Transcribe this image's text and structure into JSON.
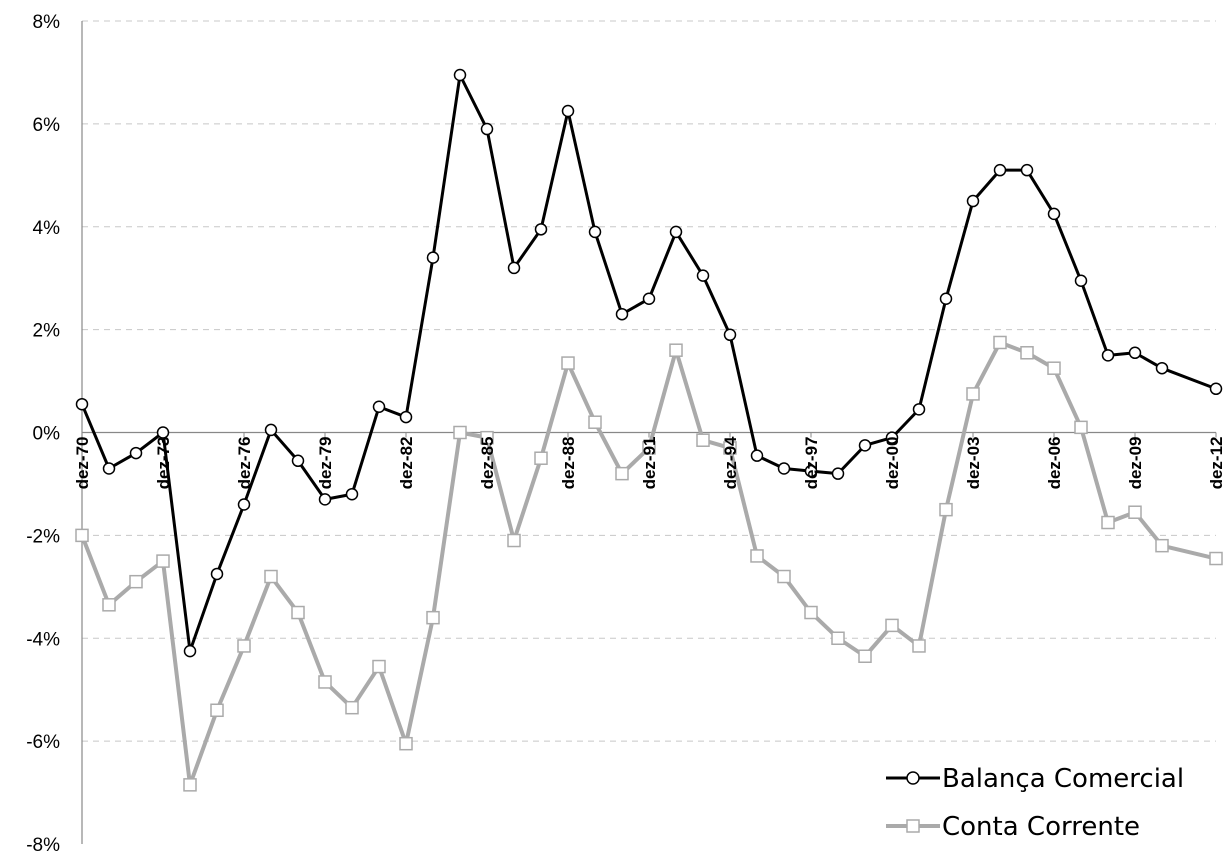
{
  "chart_data": {
    "type": "line",
    "title": "",
    "xlabel": "",
    "ylabel": "",
    "ylim": [
      -8,
      8
    ],
    "yticks": [
      -8,
      -6,
      -4,
      -2,
      0,
      2,
      4,
      6,
      8
    ],
    "ytick_labels": [
      "-8%",
      "-6%",
      "-4%",
      "-2%",
      "0%",
      "2%",
      "4%",
      "6%",
      "8%"
    ],
    "x_start_year": 1970,
    "x_end_year": 2012,
    "xtick_labels": [
      "dez-70",
      "dez-73",
      "dez-76",
      "dez-79",
      "dez-82",
      "dez-85",
      "dez-88",
      "dez-91",
      "dez-94",
      "dez-97",
      "dez-00",
      "dez-03",
      "dez-06",
      "dez-09",
      "dez-12"
    ],
    "grid": true,
    "legend": "bottom-right",
    "series": [
      {
        "name": "Balança Comercial",
        "color": "#000000",
        "marker": "circle",
        "x": [
          1970,
          1971,
          1972,
          1973,
          1974,
          1975,
          1976,
          1977,
          1978,
          1979,
          1980,
          1981,
          1982,
          1983,
          1984,
          1985,
          1986,
          1987,
          1988,
          1989,
          1990,
          1991,
          1992,
          1993,
          1994,
          1995,
          1996,
          1997,
          1998,
          1999,
          2000,
          2001,
          2002,
          2003,
          2004,
          2005,
          2006,
          2007,
          2008,
          2009,
          2010,
          2012
        ],
        "values": [
          0.55,
          -0.7,
          -0.4,
          0.0,
          -4.25,
          -2.75,
          -1.4,
          0.05,
          -0.55,
          -1.3,
          -1.2,
          0.5,
          0.3,
          3.4,
          6.95,
          5.9,
          3.2,
          3.95,
          6.25,
          3.9,
          2.3,
          2.6,
          3.9,
          3.05,
          1.9,
          -0.45,
          -0.7,
          -0.75,
          -0.8,
          -0.25,
          -0.1,
          0.45,
          2.6,
          4.5,
          5.1,
          5.1,
          4.25,
          2.95,
          1.5,
          1.55,
          1.25,
          0.85
        ]
      },
      {
        "name": "Conta Corrente",
        "color": "#aaaaaa",
        "marker": "square",
        "x": [
          1970,
          1971,
          1972,
          1973,
          1974,
          1975,
          1976,
          1977,
          1978,
          1979,
          1980,
          1981,
          1982,
          1983,
          1984,
          1985,
          1986,
          1987,
          1988,
          1989,
          1990,
          1991,
          1992,
          1993,
          1994,
          1995,
          1996,
          1997,
          1998,
          1999,
          2000,
          2001,
          2002,
          2003,
          2004,
          2005,
          2006,
          2007,
          2008,
          2009,
          2010,
          2012
        ],
        "values": [
          -2.0,
          -3.35,
          -2.9,
          -2.5,
          -6.85,
          -5.4,
          -4.15,
          -2.8,
          -3.5,
          -4.85,
          -5.35,
          -4.55,
          -6.05,
          -3.6,
          0.0,
          -0.1,
          -2.1,
          -0.5,
          1.35,
          0.2,
          -0.8,
          -0.3,
          1.6,
          -0.15,
          -0.3,
          -2.4,
          -2.8,
          -3.5,
          -4.0,
          -4.35,
          -3.75,
          -4.15,
          -1.5,
          0.75,
          1.75,
          1.55,
          1.25,
          0.1,
          -1.75,
          -1.55,
          -2.2,
          -2.45
        ]
      }
    ]
  }
}
